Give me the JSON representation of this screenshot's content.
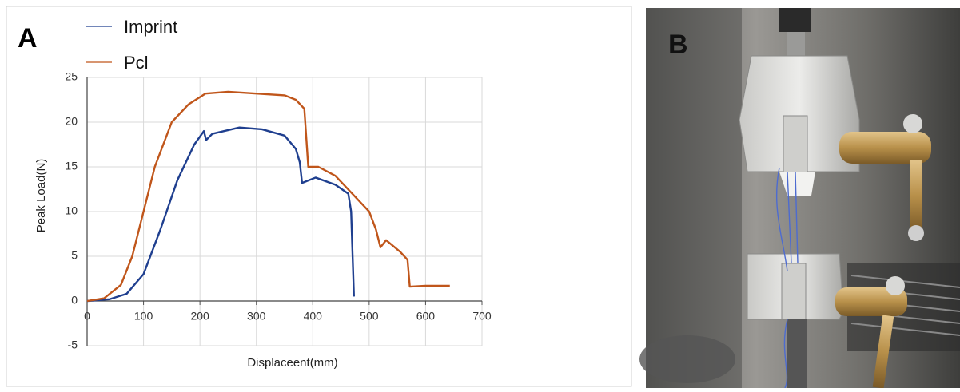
{
  "panel_labels": [
    "A",
    "B"
  ],
  "chart_data": {
    "type": "line",
    "x_label": "Displaceent(mm)",
    "y_label": "Peak Load(N)",
    "xlim": [
      0,
      700
    ],
    "xticks": [
      0,
      100,
      200,
      300,
      400,
      500,
      600,
      700
    ],
    "ylim": [
      -5,
      25
    ],
    "yticks": [
      -5,
      0,
      5,
      10,
      15,
      20,
      25
    ],
    "grid": true,
    "legend": "top-left",
    "series": [
      {
        "name": "Imprint",
        "color": "#1f3f8f",
        "x": [
          0,
          40,
          70,
          100,
          130,
          160,
          190,
          207,
          211,
          222,
          270,
          310,
          350,
          370,
          377,
          381,
          405,
          440,
          463,
          468,
          473
        ],
        "values": [
          0,
          0.2,
          0.8,
          3,
          8,
          13.5,
          17.5,
          19,
          18,
          18.7,
          19.4,
          19.2,
          18.5,
          17,
          15.5,
          13.2,
          13.8,
          13,
          12,
          10,
          0.5
        ]
      },
      {
        "name": "Pcl",
        "color": "#c0561b",
        "x": [
          0,
          30,
          60,
          80,
          100,
          120,
          150,
          180,
          210,
          250,
          300,
          350,
          370,
          385,
          392,
          398,
          410,
          440,
          470,
          500,
          512,
          520,
          530,
          555,
          568,
          572,
          600,
          643
        ],
        "values": [
          0,
          0.3,
          1.8,
          5,
          10,
          15,
          20,
          22,
          23.2,
          23.4,
          23.2,
          23,
          22.5,
          21.5,
          15,
          15,
          15,
          14,
          12,
          10,
          8,
          6,
          6.8,
          5.5,
          4.6,
          1.6,
          1.7,
          1.7
        ]
      }
    ]
  }
}
